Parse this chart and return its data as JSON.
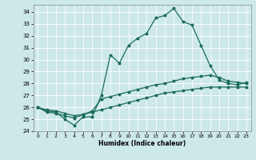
{
  "xlabel": "Humidex (Indice chaleur)",
  "bg_color": "#cde8e8",
  "grid_color": "#ffffff",
  "line_color": "#1a6b5a",
  "xlim": [
    -0.5,
    23.5
  ],
  "ylim": [
    24,
    34.6
  ],
  "xticks": [
    0,
    1,
    2,
    3,
    4,
    5,
    6,
    7,
    8,
    9,
    10,
    11,
    12,
    13,
    14,
    15,
    16,
    17,
    18,
    19,
    20,
    21,
    22,
    23
  ],
  "yticks": [
    24,
    25,
    26,
    27,
    28,
    29,
    30,
    31,
    32,
    33,
    34
  ],
  "curve1_x": [
    0,
    1,
    2,
    3,
    4,
    5,
    6,
    7,
    8,
    9,
    10,
    11,
    12,
    13,
    14,
    15,
    16,
    17,
    18,
    19,
    20,
    21,
    22,
    23
  ],
  "curve1_y": [
    26.0,
    25.7,
    25.6,
    25.0,
    24.5,
    25.2,
    25.2,
    27.0,
    30.4,
    29.7,
    31.2,
    31.8,
    32.2,
    33.5,
    33.7,
    34.3,
    33.2,
    32.9,
    31.2,
    29.5,
    28.3,
    28.0,
    27.9,
    28.1
  ],
  "curve2_x": [
    0,
    1,
    2,
    3,
    4,
    5,
    6,
    7,
    8,
    9,
    10,
    11,
    12,
    13,
    14,
    15,
    16,
    17,
    18,
    19,
    20,
    21,
    22,
    23
  ],
  "curve2_y": [
    26.0,
    25.6,
    25.5,
    25.3,
    25.1,
    25.4,
    25.7,
    26.7,
    26.9,
    27.1,
    27.3,
    27.5,
    27.7,
    27.9,
    28.0,
    28.2,
    28.4,
    28.5,
    28.6,
    28.7,
    28.5,
    28.2,
    28.1,
    28.0
  ],
  "curve3_x": [
    0,
    1,
    2,
    3,
    4,
    5,
    6,
    7,
    8,
    9,
    10,
    11,
    12,
    13,
    14,
    15,
    16,
    17,
    18,
    19,
    20,
    21,
    22,
    23
  ],
  "curve3_y": [
    26.0,
    25.8,
    25.7,
    25.5,
    25.3,
    25.4,
    25.6,
    25.8,
    26.0,
    26.2,
    26.4,
    26.6,
    26.8,
    27.0,
    27.2,
    27.3,
    27.4,
    27.5,
    27.6,
    27.7,
    27.7,
    27.7,
    27.7,
    27.7
  ]
}
